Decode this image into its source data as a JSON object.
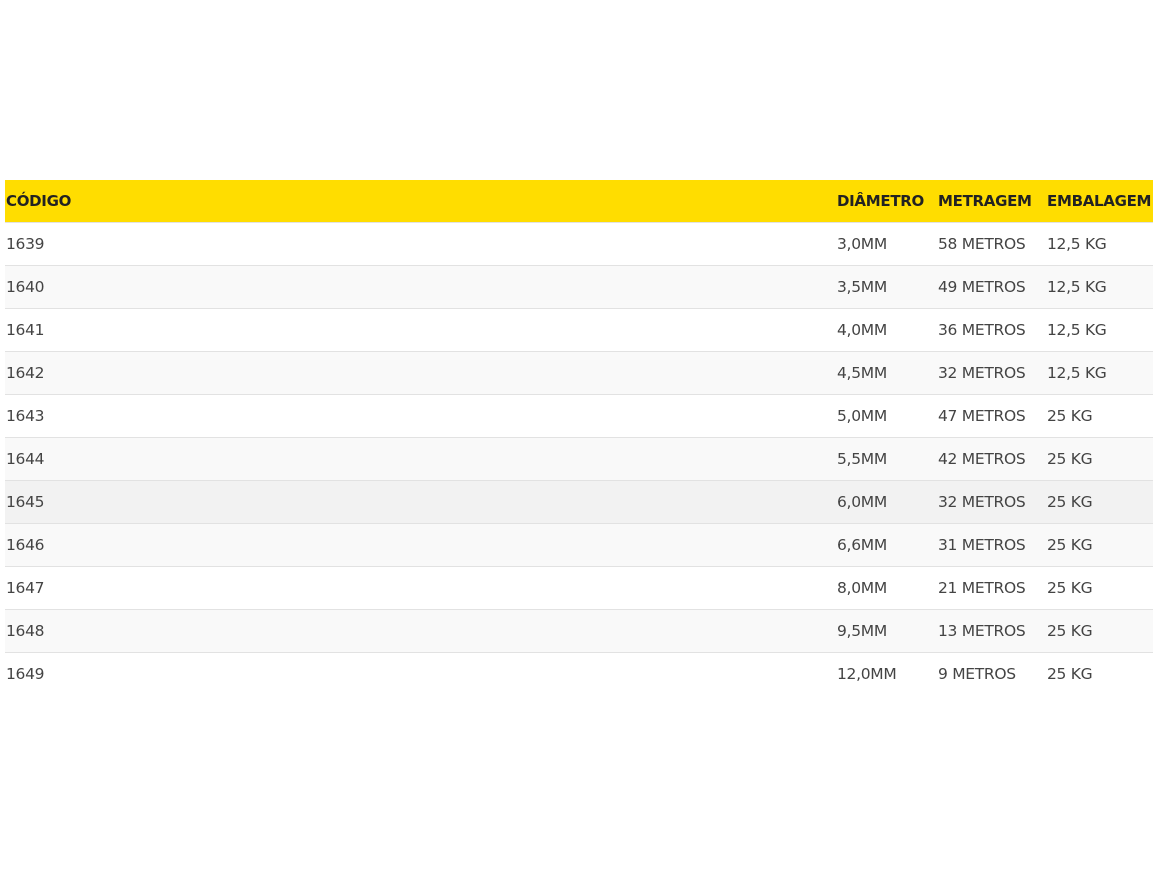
{
  "table": {
    "headers": [
      "CÓDIGO",
      "DIÂMETRO",
      "METRAGEM",
      "EMBALAGEM"
    ],
    "rows": [
      [
        "1639",
        "3,0MM",
        "58 METROS",
        "12,5 KG"
      ],
      [
        "1640",
        "3,5MM",
        "49 METROS",
        "12,5 KG"
      ],
      [
        "1641",
        "4,0MM",
        "36 METROS",
        "12,5 KG"
      ],
      [
        "1642",
        "4,5MM",
        "32 METROS",
        "12,5 KG"
      ],
      [
        "1643",
        "5,0MM",
        "47 METROS",
        "25 KG"
      ],
      [
        "1644",
        "5,5MM",
        "42 METROS",
        "25 KG"
      ],
      [
        "1645",
        "6,0MM",
        "32 METROS",
        "25 KG"
      ],
      [
        "1646",
        "6,6MM",
        "31 METROS",
        "25 KG"
      ],
      [
        "1647",
        "8,0MM",
        "21 METROS",
        "25 KG"
      ],
      [
        "1648",
        "9,5MM",
        "13 METROS",
        "25 KG"
      ],
      [
        "1649",
        "12,0MM",
        "9 METROS",
        "25 KG"
      ]
    ]
  },
  "colors": {
    "header_bg": "#ffdd00",
    "stripe": "#f9f9f9",
    "highlight": "#f2f2f2"
  }
}
